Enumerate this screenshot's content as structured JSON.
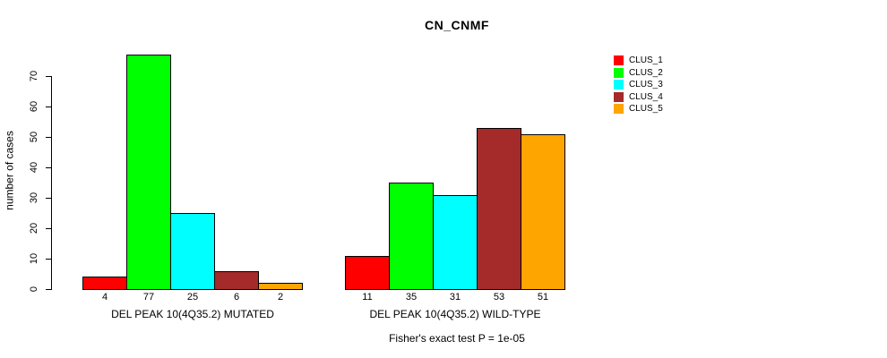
{
  "chart_data": {
    "type": "bar",
    "title": "CN_CNMF",
    "ylabel": "number of cases",
    "xlabel": "",
    "caption": "Fisher's exact test P = 1e-05",
    "categories": [
      "DEL PEAK 10(4Q35.2) MUTATED",
      "DEL PEAK 10(4Q35.2) WILD-TYPE"
    ],
    "series": [
      {
        "name": "CLUS_1",
        "color": "#ff0000",
        "values": [
          4,
          11
        ]
      },
      {
        "name": "CLUS_2",
        "color": "#00ff00",
        "values": [
          77,
          35
        ]
      },
      {
        "name": "CLUS_3",
        "color": "#00ffff",
        "values": [
          25,
          31
        ]
      },
      {
        "name": "CLUS_4",
        "color": "#a52a2a",
        "values": [
          6,
          53
        ]
      },
      {
        "name": "CLUS_5",
        "color": "#ffa500",
        "values": [
          2,
          51
        ]
      }
    ],
    "bar_value_labels": [
      [
        "4",
        "77",
        "25",
        "6",
        "2"
      ],
      [
        "11",
        "35",
        "31",
        "53",
        "51"
      ]
    ],
    "yticks": [
      0,
      10,
      20,
      30,
      40,
      50,
      60,
      70
    ],
    "ylim": [
      0,
      77
    ],
    "grid": false,
    "legend_position": "right",
    "axis_color": "#000000",
    "bar_border_color": "#000000"
  }
}
